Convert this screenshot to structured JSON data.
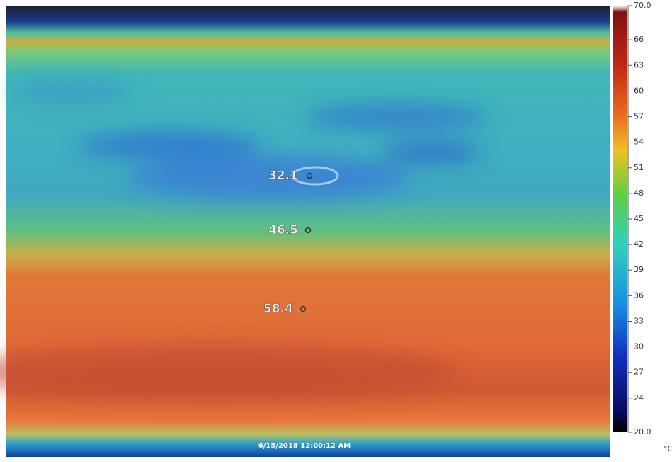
{
  "image": {
    "timestamp": "6/15/2018 12:00:12 AM",
    "spots": [
      {
        "label": 32.1
      },
      {
        "label": 46.5
      },
      {
        "label": 58.4
      }
    ]
  },
  "scale": {
    "unit": "°C",
    "ticks": [
      {
        "value": 70,
        "label": "70.0"
      },
      66,
      63,
      60,
      57,
      54,
      51,
      48,
      45,
      42,
      39,
      36,
      33,
      30,
      27,
      24,
      {
        "value": 20,
        "label": "20.0"
      }
    ]
  }
}
